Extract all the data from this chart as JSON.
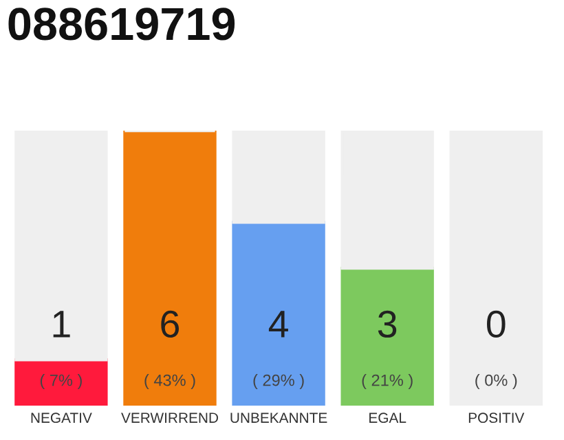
{
  "chart_data": {
    "type": "bar",
    "title": "088619719",
    "stacked": true,
    "categories": [
      "NEGATIV",
      "VERWIRREND",
      "UNBEKANNTE",
      "EGAL",
      "POSITIV"
    ],
    "series": [
      {
        "values": [
          1,
          6,
          4,
          3,
          0
        ],
        "colors": [
          "#ff1a3c",
          "#f07d0c",
          "#669ff0",
          "#7dc95e",
          "#22aa44"
        ],
        "value_labels": [
          "1\n( 7% )",
          "6\n( 43% )",
          "4\n( 29% )",
          "3\n( 21% )",
          "0\n( 0% )"
        ]
      },
      {
        "values": [
          5,
          0,
          2,
          3,
          6
        ],
        "color": "#efefef"
      }
    ],
    "ylim": [
      0,
      6
    ],
    "tick_labels": "x",
    "grid": false,
    "legend": false
  }
}
